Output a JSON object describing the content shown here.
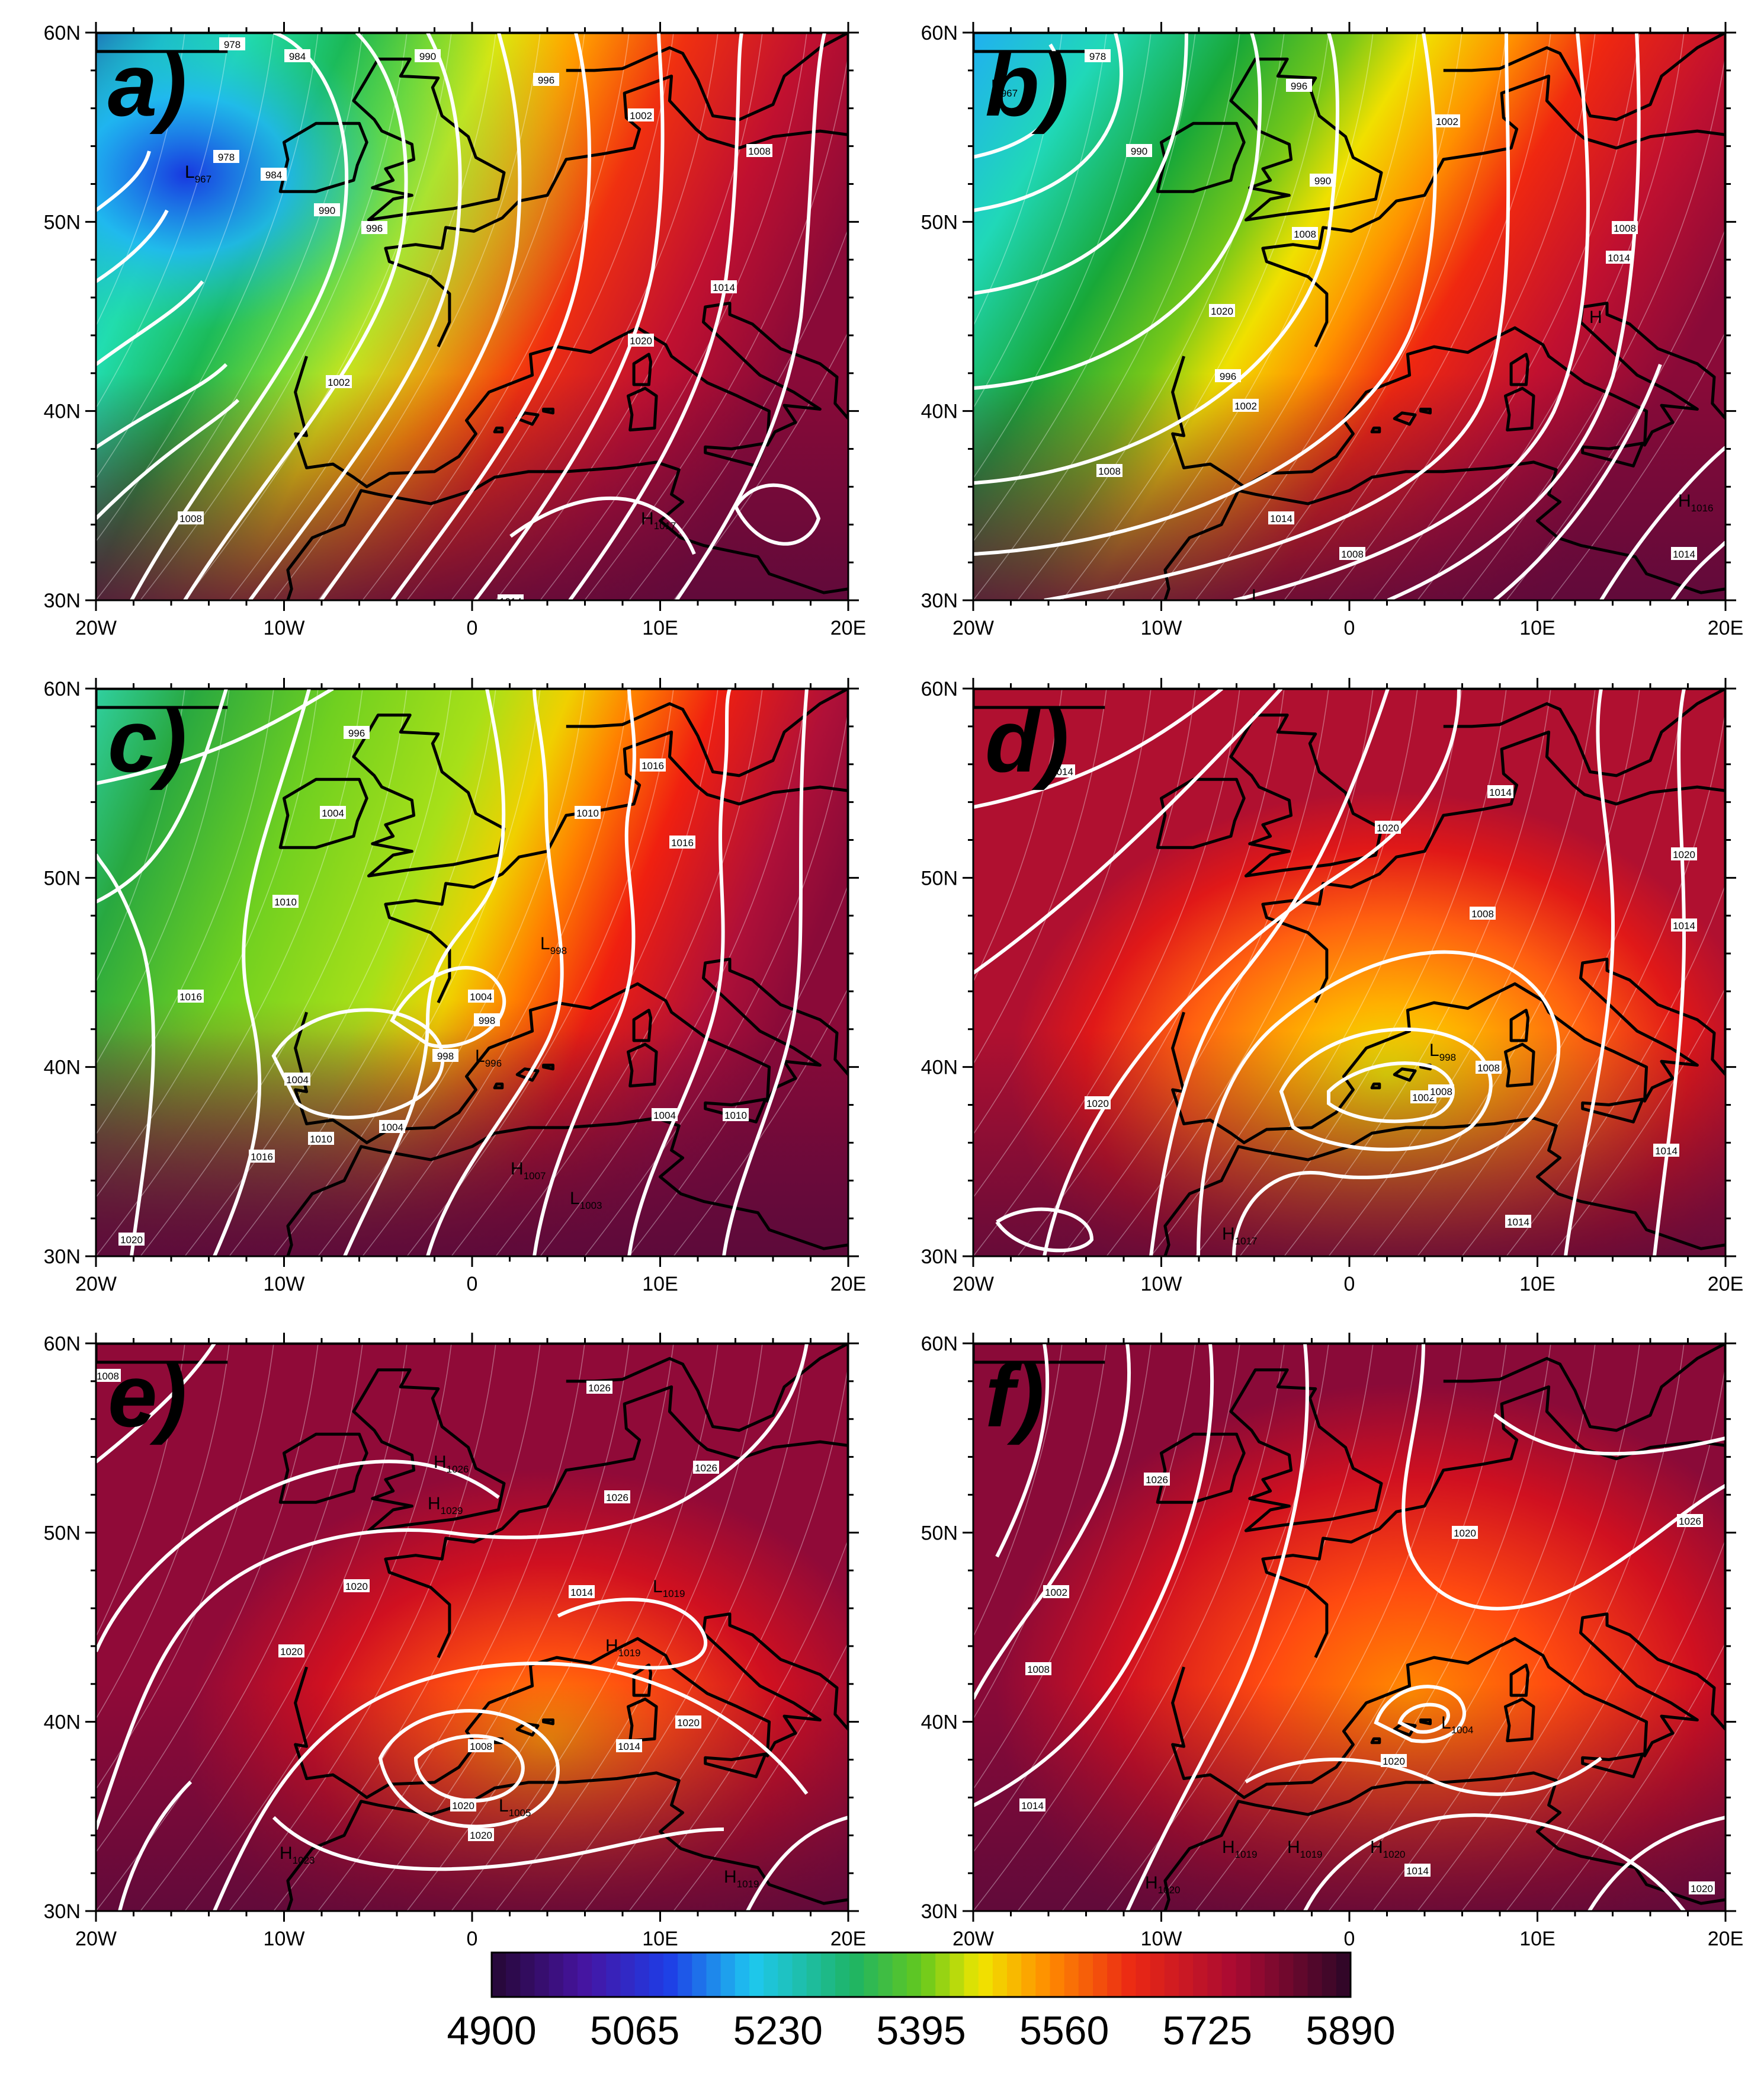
{
  "axes": {
    "lat_ticks": [
      "60N",
      "50N",
      "40N",
      "30N"
    ],
    "lon_ticks": [
      "20W",
      "10W",
      "0",
      "10E",
      "20E"
    ]
  },
  "panels": [
    {
      "id": "a",
      "label": "a)",
      "contour_labels": [
        "978",
        "984",
        "990",
        "996",
        "1002",
        "1008",
        "1014",
        "1020",
        "978",
        "984",
        "990",
        "996",
        "1002",
        "1008",
        "1014"
      ],
      "centers": [
        {
          "type": "L",
          "value": "967"
        },
        {
          "type": "H",
          "value": "1017"
        }
      ]
    },
    {
      "id": "b",
      "label": "b)",
      "contour_labels": [
        "978",
        "990",
        "996",
        "1002",
        "1008",
        "1014",
        "1020",
        "990",
        "996",
        "1002",
        "1008",
        "1014",
        "1008",
        "1008",
        "1014"
      ],
      "centers": [
        {
          "type": "L",
          "value": "967"
        },
        {
          "type": "H",
          "value": "1016"
        },
        {
          "type": "L",
          "value": "1005"
        },
        {
          "type": "H",
          "value": ""
        }
      ]
    },
    {
      "id": "c",
      "label": "c)",
      "contour_labels": [
        "996",
        "1004",
        "1010",
        "1016",
        "1004",
        "1010",
        "1016",
        "1020",
        "998",
        "998",
        "1004",
        "1004",
        "1010",
        "1016",
        "1004",
        "1010",
        "1016"
      ],
      "centers": [
        {
          "type": "L",
          "value": "998"
        },
        {
          "type": "L",
          "value": "996"
        },
        {
          "type": "H",
          "value": "1007"
        },
        {
          "type": "L",
          "value": "1003"
        },
        {
          "type": "H",
          "value": "1012"
        }
      ]
    },
    {
      "id": "d",
      "label": "d)",
      "contour_labels": [
        "1014",
        "1020",
        "1014",
        "1008",
        "1020",
        "1014",
        "1020",
        "1002",
        "1008",
        "1008",
        "1014",
        "1014"
      ],
      "centers": [
        {
          "type": "L",
          "value": "998"
        },
        {
          "type": "H",
          "value": "1017"
        }
      ]
    },
    {
      "id": "e",
      "label": "e)",
      "contour_labels": [
        "1008",
        "1026",
        "1026",
        "1026",
        "1020",
        "1020",
        "1020",
        "1014",
        "1008",
        "1014",
        "1020",
        "1020"
      ],
      "centers": [
        {
          "type": "H",
          "value": "1026"
        },
        {
          "type": "H",
          "value": "1029"
        },
        {
          "type": "L",
          "value": "1019"
        },
        {
          "type": "H",
          "value": "1019"
        },
        {
          "type": "L",
          "value": "1005"
        },
        {
          "type": "H",
          "value": "1023"
        },
        {
          "type": "H",
          "value": "1019"
        }
      ]
    },
    {
      "id": "f",
      "label": "f)",
      "contour_labels": [
        "1026",
        "1002",
        "1008",
        "1014",
        "1020",
        "1020",
        "1026",
        "1014",
        "1020"
      ],
      "centers": [
        {
          "type": "L",
          "value": "1004"
        },
        {
          "type": "H",
          "value": "1020"
        },
        {
          "type": "H",
          "value": "1019"
        },
        {
          "type": "H",
          "value": "1019"
        },
        {
          "type": "H",
          "value": "1020"
        },
        {
          "type": "H",
          "value": "1020"
        }
      ]
    }
  ],
  "colorbar": {
    "labels": [
      "4900",
      "5065",
      "5230",
      "5395",
      "5560",
      "5725",
      "5890"
    ],
    "min": 4900,
    "max": 5890,
    "steps": 60
  },
  "colors": {
    "low": "#2b0a3d",
    "blue": "#1a3cf0",
    "cyan": "#1ff0f0",
    "green": "#109020",
    "yellow": "#f0f000",
    "orange": "#ff8000",
    "red": "#e01010",
    "maroon": "#8a0a32",
    "contour": "#ffffff"
  }
}
